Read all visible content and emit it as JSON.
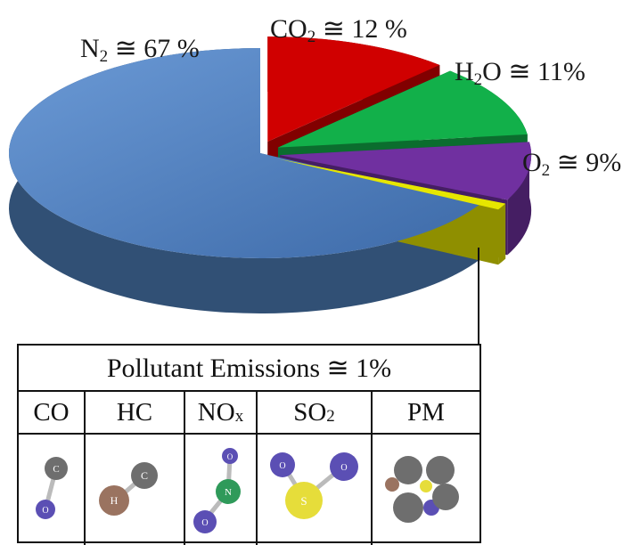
{
  "chart_data": {
    "type": "pie",
    "title": "",
    "slices": [
      {
        "label": "N₂ ≅ 67 %",
        "value": 67,
        "color": "#4f81bd"
      },
      {
        "label": "CO₂ ≅ 12 %",
        "value": 12,
        "color": "#d00000"
      },
      {
        "label": "H₂O ≅ 11%",
        "value": 11,
        "color": "#12b04a"
      },
      {
        "label": "O₂ ≅ 9%",
        "value": 9,
        "color": "#7030a0"
      },
      {
        "label": "",
        "value": 1,
        "color": "#e6e600"
      }
    ]
  },
  "labels": {
    "n2": {
      "main": "N",
      "sub": "2",
      "rest": " ≅ 67 %"
    },
    "co2": {
      "main": "CO",
      "sub": "2",
      "rest": " ≅ 12 %"
    },
    "h2o": {
      "main": "H",
      "sub": "2",
      "rest": "O ≅ 11%"
    },
    "o2": {
      "main": "O",
      "sub": "2",
      "rest": " ≅ 9%"
    }
  },
  "table": {
    "title": "Pollutant Emissions ≅ 1%",
    "headers": [
      {
        "main": "CO",
        "sub": ""
      },
      {
        "main": "HC",
        "sub": ""
      },
      {
        "main": "NO",
        "sub": "x"
      },
      {
        "main": "SO",
        "sub": "2"
      },
      {
        "main": "PM",
        "sub": ""
      }
    ],
    "atom_labels": {
      "c": "C",
      "o": "O",
      "h": "H",
      "n": "N",
      "s": "S"
    }
  },
  "colors": {
    "carbon": "#6e6e6e",
    "oxygen": "#5b4fb4",
    "hydrogen": "#9a7360",
    "nitrogen": "#2f9a5a",
    "sulfur": "#e6dd3a"
  }
}
